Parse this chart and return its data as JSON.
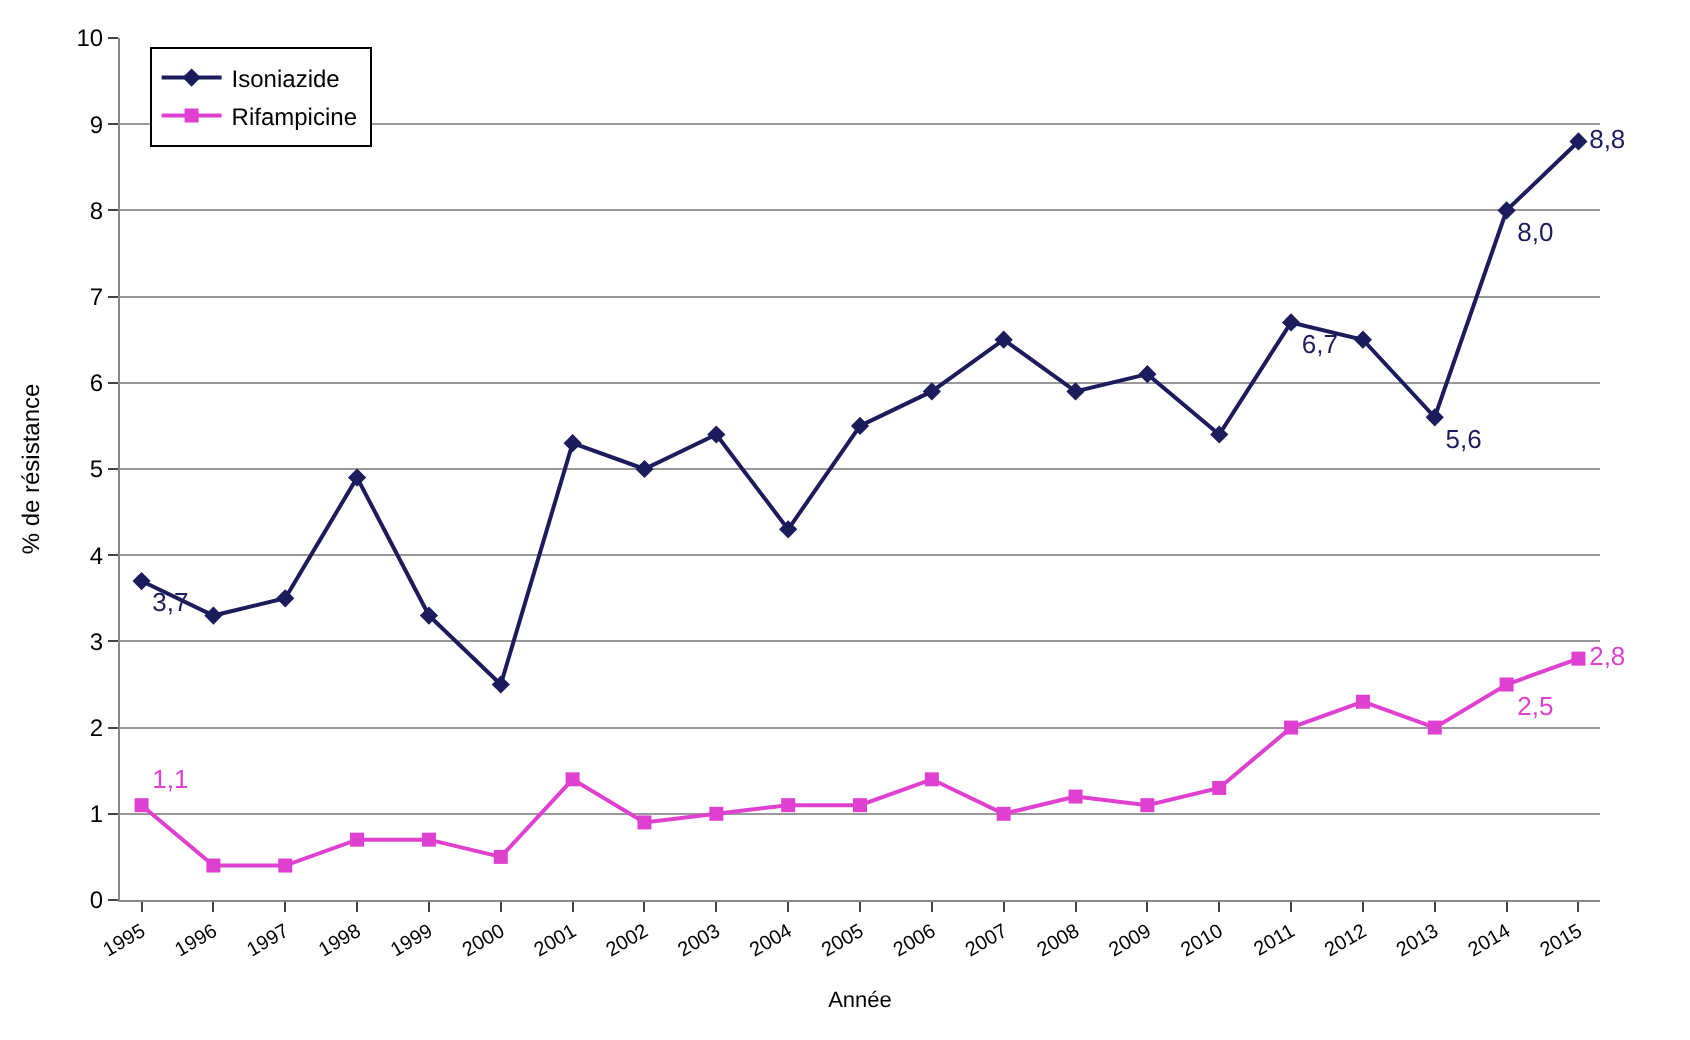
{
  "chart_data": {
    "type": "line",
    "xlabel": "Année",
    "ylabel": "% de résistance",
    "categories": [
      "1995",
      "1996",
      "1997",
      "1998",
      "1999",
      "2000",
      "2001",
      "2002",
      "2003",
      "2004",
      "2005",
      "2006",
      "2007",
      "2008",
      "2009",
      "2010",
      "2011",
      "2012",
      "2013",
      "2014",
      "2015"
    ],
    "series": [
      {
        "name": "Isoniazide",
        "color": "#1c1c5c",
        "marker": "diamond",
        "values": [
          3.7,
          3.3,
          3.5,
          4.9,
          3.3,
          2.5,
          5.3,
          5.0,
          5.4,
          4.3,
          5.5,
          5.9,
          6.5,
          5.9,
          6.1,
          5.4,
          6.7,
          6.5,
          5.6,
          8.0,
          8.8
        ],
        "value_labels": [
          "3,7",
          null,
          null,
          null,
          null,
          null,
          null,
          null,
          null,
          null,
          null,
          null,
          null,
          null,
          null,
          null,
          "6,7",
          null,
          "5,6",
          "8,0",
          "8,8"
        ]
      },
      {
        "name": "Rifampicine",
        "color": "#e040d0",
        "marker": "square",
        "values": [
          1.1,
          0.4,
          0.4,
          0.7,
          0.7,
          0.5,
          1.4,
          0.9,
          1.0,
          1.1,
          1.1,
          1.4,
          1.0,
          1.2,
          1.1,
          1.3,
          2.0,
          2.3,
          2.0,
          2.5,
          2.8
        ],
        "value_labels": [
          "1,1",
          null,
          null,
          null,
          null,
          null,
          null,
          null,
          null,
          null,
          null,
          null,
          null,
          null,
          null,
          null,
          null,
          null,
          null,
          "2,5",
          "2,8"
        ]
      }
    ],
    "ylim": [
      0,
      10
    ],
    "yticks": [
      0,
      1,
      2,
      3,
      4,
      5,
      6,
      7,
      8,
      9,
      10
    ],
    "grid": "y",
    "legend": "top left"
  }
}
